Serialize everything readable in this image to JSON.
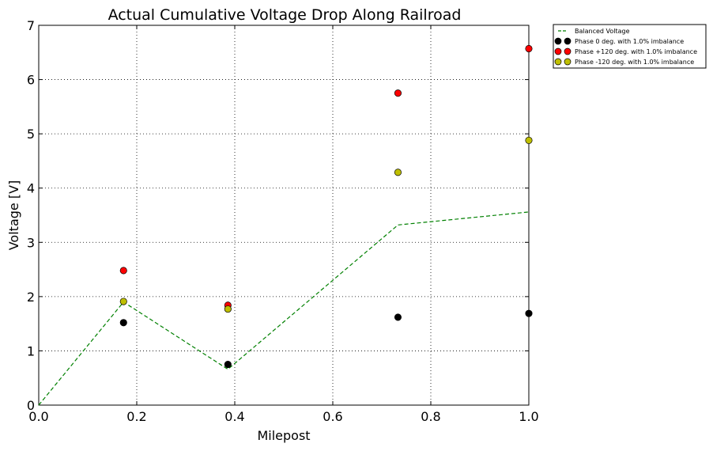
{
  "chart_data": {
    "type": "scatter",
    "title": "Actual Cumulative Voltage Drop Along Railroad",
    "xlabel": "Milepost",
    "ylabel": "Voltage [V]",
    "xlim": [
      0.0,
      1.0
    ],
    "ylim": [
      0,
      7
    ],
    "xticks": [
      "0.0",
      "0.2",
      "0.4",
      "0.6",
      "0.8",
      "1.0"
    ],
    "yticks": [
      "0",
      "1",
      "2",
      "3",
      "4",
      "5",
      "6",
      "7"
    ],
    "grid": true,
    "legend_position": "outside-top-right",
    "series": [
      {
        "name": "Balanced Voltage",
        "style": "dashed-line",
        "color": "#008000",
        "x": [
          0.0,
          0.173,
          0.386,
          0.733,
          1.0
        ],
        "y": [
          0.0,
          1.9,
          0.66,
          3.32,
          3.56
        ]
      },
      {
        "name": "Phase 0 deg. with 1.0% imbalance",
        "style": "marker",
        "color": "#000000",
        "x": [
          0.173,
          0.386,
          0.733,
          1.0
        ],
        "y": [
          1.52,
          0.75,
          1.62,
          1.69
        ]
      },
      {
        "name": "Phase +120 deg. with 1.0% imbalance",
        "style": "marker",
        "color": "#ff0000",
        "x": [
          0.173,
          0.386,
          0.733,
          1.0
        ],
        "y": [
          2.48,
          1.84,
          5.75,
          6.57
        ]
      },
      {
        "name": "Phase -120 deg. with 1.0% imbalance",
        "style": "marker",
        "color": "#bfbf00",
        "x": [
          0.173,
          0.386,
          0.733,
          1.0
        ],
        "y": [
          1.91,
          1.77,
          4.29,
          4.88
        ]
      }
    ]
  }
}
